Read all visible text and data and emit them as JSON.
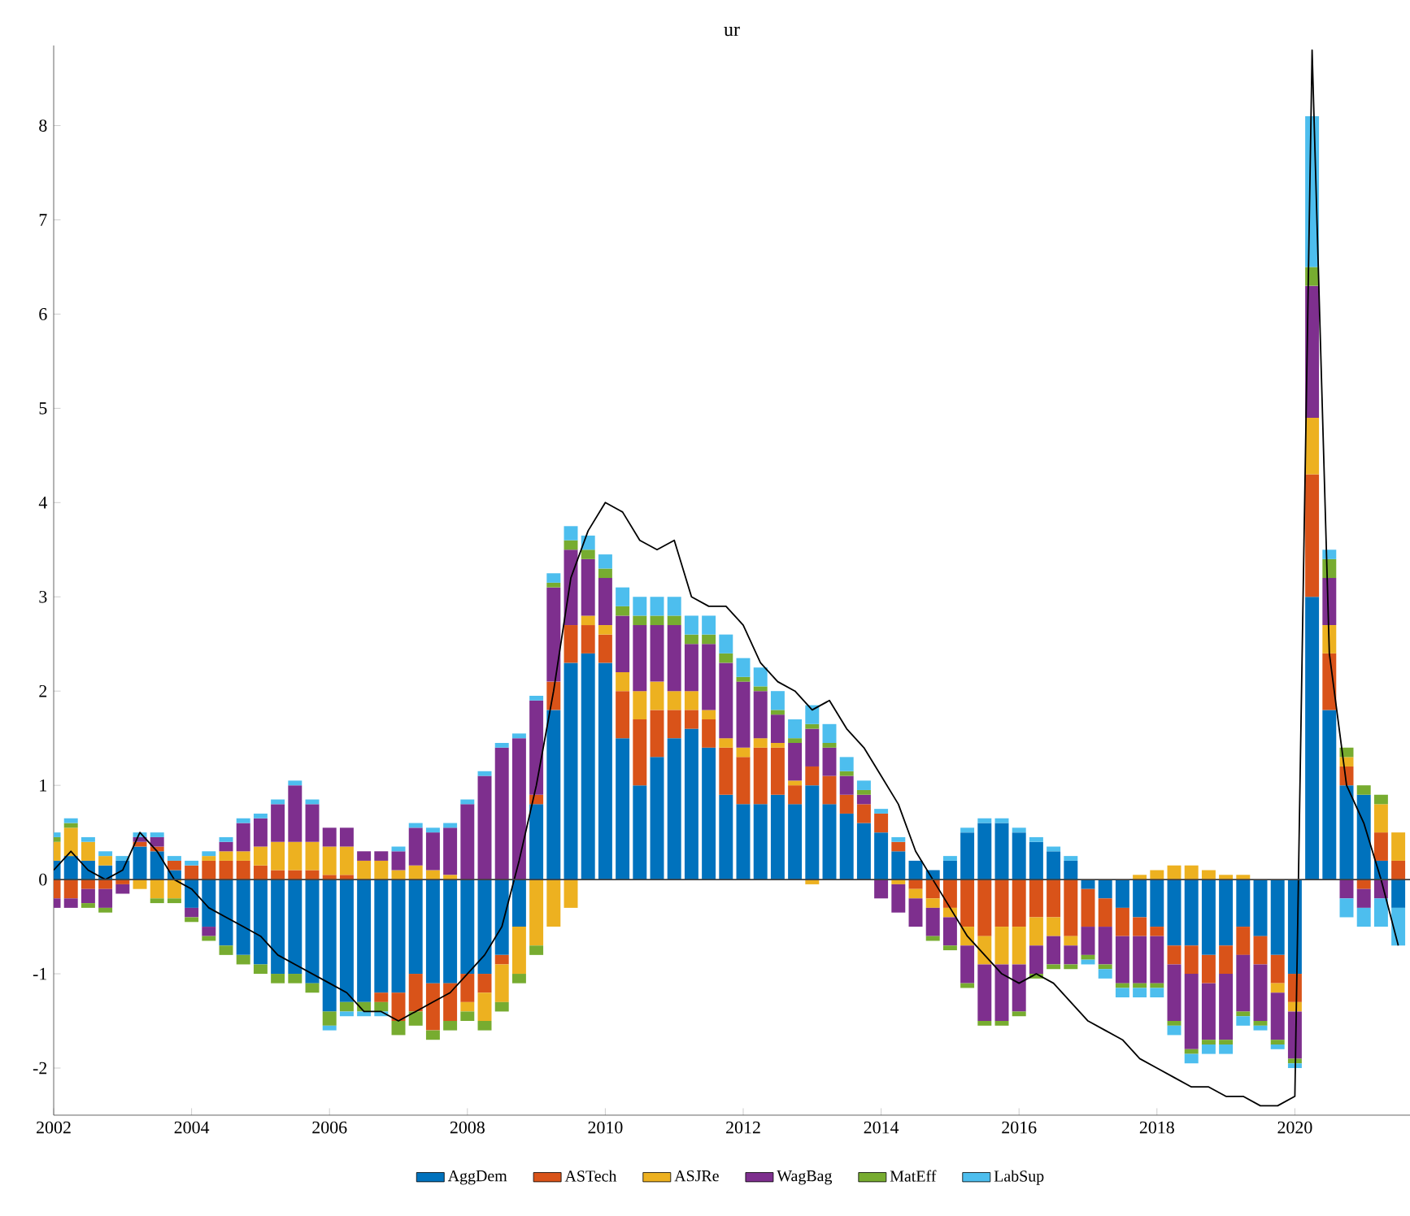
{
  "chart_data": {
    "type": "bar",
    "title": "ur",
    "stacked": true,
    "legend": "bottom",
    "xlim": [
      "2002-01",
      "2021-09"
    ],
    "xticks": [
      "2002",
      "2004",
      "2006",
      "2008",
      "2010",
      "2012",
      "2014",
      "2016",
      "2018",
      "2020"
    ],
    "ylim": [
      -2.5,
      8.85
    ],
    "yticks": [
      -2,
      -1,
      0,
      1,
      2,
      3,
      4,
      5,
      6,
      7,
      8
    ],
    "x": [
      "2002-01",
      "2002-04",
      "2002-07",
      "2002-10",
      "2003-01",
      "2003-04",
      "2003-07",
      "2003-10",
      "2004-01",
      "2004-04",
      "2004-07",
      "2004-10",
      "2005-01",
      "2005-04",
      "2005-07",
      "2005-10",
      "2006-01",
      "2006-04",
      "2006-07",
      "2006-10",
      "2007-01",
      "2007-04",
      "2007-07",
      "2007-10",
      "2008-01",
      "2008-04",
      "2008-07",
      "2008-10",
      "2009-01",
      "2009-04",
      "2009-07",
      "2009-10",
      "2010-01",
      "2010-04",
      "2010-07",
      "2010-10",
      "2011-01",
      "2011-04",
      "2011-07",
      "2011-10",
      "2012-01",
      "2012-04",
      "2012-07",
      "2012-10",
      "2013-01",
      "2013-04",
      "2013-07",
      "2013-10",
      "2014-01",
      "2014-04",
      "2014-07",
      "2014-10",
      "2015-01",
      "2015-04",
      "2015-07",
      "2015-10",
      "2016-01",
      "2016-04",
      "2016-07",
      "2016-10",
      "2017-01",
      "2017-04",
      "2017-07",
      "2017-10",
      "2018-01",
      "2018-04",
      "2018-07",
      "2018-10",
      "2019-01",
      "2019-04",
      "2019-07",
      "2019-10",
      "2020-01",
      "2020-04",
      "2020-07",
      "2020-10",
      "2021-01",
      "2021-04",
      "2021-07"
    ],
    "series": [
      {
        "name": "AggDem",
        "color": "#0072bd",
        "values": [
          0.2,
          0.25,
          0.2,
          0.15,
          0.2,
          0.35,
          0.3,
          0.1,
          -0.3,
          -0.5,
          -0.7,
          -0.8,
          -0.9,
          -1.0,
          -1.0,
          -1.1,
          -1.4,
          -1.3,
          -1.3,
          -1.2,
          -1.2,
          -1.0,
          -1.1,
          -1.1,
          -1.0,
          -1.0,
          -0.8,
          -0.5,
          0.8,
          1.8,
          2.3,
          2.4,
          2.3,
          1.5,
          1.0,
          1.3,
          1.5,
          1.6,
          1.4,
          0.9,
          0.8,
          0.8,
          0.9,
          0.8,
          1.0,
          0.8,
          0.7,
          0.6,
          0.5,
          0.3,
          0.2,
          0.1,
          0.2,
          0.5,
          0.6,
          0.6,
          0.5,
          0.4,
          0.3,
          0.2,
          -0.1,
          -0.2,
          -0.3,
          -0.4,
          -0.5,
          -0.7,
          -0.7,
          -0.8,
          -0.7,
          -0.5,
          -0.6,
          -0.8,
          -1.0,
          3.0,
          1.8,
          1.0,
          0.9,
          0.2,
          -0.3
        ]
      },
      {
        "name": "ASTech",
        "color": "#d95319",
        "values": [
          -0.2,
          -0.2,
          -0.1,
          -0.1,
          -0.05,
          0.05,
          0.05,
          0.1,
          0.15,
          0.2,
          0.2,
          0.2,
          0.15,
          0.1,
          0.1,
          0.1,
          0.05,
          0.05,
          0.0,
          -0.1,
          -0.3,
          -0.4,
          -0.5,
          -0.4,
          -0.3,
          -0.2,
          -0.1,
          0.0,
          0.1,
          0.3,
          0.4,
          0.3,
          0.3,
          0.5,
          0.7,
          0.5,
          0.3,
          0.2,
          0.3,
          0.5,
          0.5,
          0.6,
          0.5,
          0.2,
          0.2,
          0.3,
          0.2,
          0.2,
          0.2,
          0.1,
          -0.1,
          -0.2,
          -0.3,
          -0.5,
          -0.6,
          -0.5,
          -0.5,
          -0.4,
          -0.4,
          -0.6,
          -0.4,
          -0.3,
          -0.3,
          -0.2,
          -0.1,
          -0.2,
          -0.3,
          -0.3,
          -0.3,
          -0.3,
          -0.3,
          -0.3,
          -0.3,
          1.3,
          0.6,
          0.2,
          -0.1,
          0.3,
          0.2
        ]
      },
      {
        "name": "ASJRe",
        "color": "#edb120",
        "values": [
          0.2,
          0.3,
          0.2,
          0.1,
          0.0,
          -0.1,
          -0.2,
          -0.2,
          0.0,
          0.05,
          0.1,
          0.1,
          0.2,
          0.3,
          0.3,
          0.3,
          0.3,
          0.3,
          0.2,
          0.2,
          0.1,
          0.15,
          0.1,
          0.05,
          -0.1,
          -0.3,
          -0.4,
          -0.5,
          -0.7,
          -0.5,
          -0.3,
          0.1,
          0.1,
          0.2,
          0.3,
          0.3,
          0.2,
          0.2,
          0.1,
          0.1,
          0.1,
          0.1,
          0.05,
          0.05,
          -0.05,
          0.0,
          0.0,
          0.0,
          0.0,
          -0.05,
          -0.1,
          -0.1,
          -0.1,
          -0.2,
          -0.3,
          -0.4,
          -0.4,
          -0.3,
          -0.2,
          -0.1,
          0.0,
          0.0,
          0.0,
          0.05,
          0.1,
          0.15,
          0.15,
          0.1,
          0.05,
          0.05,
          0.0,
          -0.1,
          -0.1,
          0.6,
          0.3,
          0.1,
          0.0,
          0.3,
          0.3
        ]
      },
      {
        "name": "WagBag",
        "color": "#7e2f8e",
        "values": [
          -0.1,
          -0.1,
          -0.15,
          -0.2,
          -0.1,
          0.05,
          0.1,
          0.0,
          -0.1,
          -0.1,
          0.1,
          0.3,
          0.3,
          0.4,
          0.6,
          0.4,
          0.2,
          0.2,
          0.1,
          0.1,
          0.2,
          0.4,
          0.4,
          0.5,
          0.8,
          1.1,
          1.4,
          1.5,
          1.0,
          1.0,
          0.8,
          0.6,
          0.5,
          0.6,
          0.7,
          0.6,
          0.7,
          0.5,
          0.7,
          0.8,
          0.7,
          0.5,
          0.3,
          0.4,
          0.4,
          0.3,
          0.2,
          0.1,
          -0.2,
          -0.3,
          -0.3,
          -0.3,
          -0.3,
          -0.4,
          -0.6,
          -0.6,
          -0.5,
          -0.3,
          -0.3,
          -0.2,
          -0.3,
          -0.4,
          -0.5,
          -0.5,
          -0.5,
          -0.6,
          -0.8,
          -0.6,
          -0.7,
          -0.6,
          -0.6,
          -0.5,
          -0.5,
          1.4,
          0.5,
          -0.2,
          -0.2,
          -0.2,
          0.0
        ]
      },
      {
        "name": "MatEff",
        "color": "#77ac30",
        "values": [
          0.05,
          0.05,
          -0.05,
          -0.05,
          0.0,
          0.0,
          -0.05,
          -0.05,
          -0.05,
          -0.05,
          -0.1,
          -0.1,
          -0.1,
          -0.1,
          -0.1,
          -0.1,
          -0.15,
          -0.1,
          -0.1,
          -0.1,
          -0.15,
          -0.15,
          -0.1,
          -0.1,
          -0.1,
          -0.1,
          -0.1,
          -0.1,
          -0.1,
          0.05,
          0.1,
          0.1,
          0.1,
          0.1,
          0.1,
          0.1,
          0.1,
          0.1,
          0.1,
          0.1,
          0.05,
          0.05,
          0.05,
          0.05,
          0.05,
          0.05,
          0.05,
          0.05,
          0.0,
          0.0,
          0.0,
          -0.05,
          -0.05,
          -0.05,
          -0.05,
          -0.05,
          -0.05,
          -0.05,
          -0.05,
          -0.05,
          -0.05,
          -0.05,
          -0.05,
          -0.05,
          -0.05,
          -0.05,
          -0.05,
          -0.05,
          -0.05,
          -0.05,
          -0.05,
          -0.05,
          -0.05,
          0.2,
          0.2,
          0.1,
          0.1,
          0.1,
          0.0
        ]
      },
      {
        "name": "LabSup",
        "color": "#4dbeee",
        "values": [
          0.05,
          0.05,
          0.05,
          0.05,
          0.05,
          0.05,
          0.05,
          0.05,
          0.05,
          0.05,
          0.05,
          0.05,
          0.05,
          0.05,
          0.05,
          0.05,
          -0.05,
          -0.05,
          -0.05,
          -0.05,
          0.05,
          0.05,
          0.05,
          0.05,
          0.05,
          0.05,
          0.05,
          0.05,
          0.05,
          0.1,
          0.15,
          0.15,
          0.15,
          0.2,
          0.2,
          0.2,
          0.2,
          0.2,
          0.2,
          0.2,
          0.2,
          0.2,
          0.2,
          0.2,
          0.2,
          0.2,
          0.15,
          0.1,
          0.05,
          0.05,
          0.0,
          0.0,
          0.05,
          0.05,
          0.05,
          0.05,
          0.05,
          0.05,
          0.05,
          0.05,
          -0.05,
          -0.1,
          -0.1,
          -0.1,
          -0.1,
          -0.1,
          -0.1,
          -0.1,
          -0.1,
          -0.1,
          -0.05,
          -0.05,
          -0.05,
          1.6,
          0.1,
          -0.2,
          -0.2,
          -0.3,
          -0.4
        ]
      },
      {
        "type": "line",
        "color": "#000000",
        "values": [
          0.1,
          0.3,
          0.1,
          0.0,
          0.1,
          0.5,
          0.3,
          0.0,
          -0.1,
          -0.3,
          -0.4,
          -0.5,
          -0.6,
          -0.8,
          -0.9,
          -1.0,
          -1.1,
          -1.2,
          -1.4,
          -1.4,
          -1.5,
          -1.4,
          -1.3,
          -1.2,
          -1.0,
          -0.8,
          -0.5,
          0.2,
          1.0,
          2.0,
          3.2,
          3.7,
          4.0,
          3.9,
          3.6,
          3.5,
          3.6,
          3.0,
          2.9,
          2.9,
          2.7,
          2.3,
          2.1,
          2.0,
          1.8,
          1.9,
          1.6,
          1.4,
          1.1,
          0.8,
          0.3,
          0.0,
          -0.3,
          -0.6,
          -0.8,
          -1.0,
          -1.1,
          -1.0,
          -1.1,
          -1.3,
          -1.5,
          -1.6,
          -1.7,
          -1.9,
          -2.0,
          -2.1,
          -2.2,
          -2.2,
          -2.3,
          -2.3,
          -2.4,
          -2.4,
          -2.3,
          8.8,
          2.4,
          1.0,
          0.6,
          0.0,
          -0.7
        ]
      }
    ]
  }
}
